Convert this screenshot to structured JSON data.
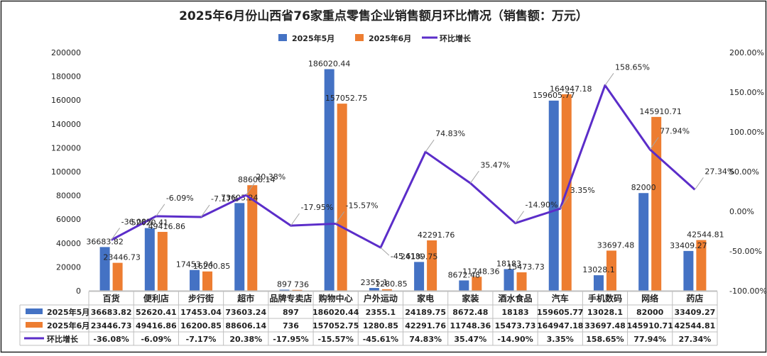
{
  "chart_data": {
    "type": "bar",
    "title": "2025年6月份山西省76家重点零售企业销售额月环比情况（销售额：万元）",
    "categories": [
      "百货",
      "便利店",
      "步行街",
      "超市",
      "品牌专卖店",
      "购物中心",
      "户外运动",
      "家电",
      "家装",
      "酒水食品",
      "汽车",
      "手机数码",
      "网络",
      "药店"
    ],
    "series": [
      {
        "name": "2025年5月",
        "type": "bar",
        "axis": "left",
        "color": "#4472C4",
        "values": [
          36683.82,
          52620.41,
          17453.04,
          73603.24,
          897,
          186020.44,
          2355.1,
          24189.75,
          8672.48,
          18183,
          159605.77,
          13028.1,
          82000,
          33409.27
        ],
        "display": [
          "36683.82",
          "52620.41",
          "17453.04",
          "73603.24",
          "897",
          "186020.44",
          "2355.1",
          "24189.75",
          "8672.48",
          "18183",
          "159605.77",
          "13028.1",
          "82000",
          "33409.27"
        ]
      },
      {
        "name": "2025年6月",
        "type": "bar",
        "axis": "left",
        "color": "#ED7D31",
        "values": [
          23446.73,
          49416.86,
          16200.85,
          88606.14,
          736,
          157052.75,
          1280.85,
          42291.76,
          11748.36,
          15473.73,
          164947.18,
          33697.48,
          145910.71,
          42544.81
        ],
        "display": [
          "23446.73",
          "49416.86",
          "16200.85",
          "88606.14",
          "736",
          "157052.75",
          "1280.85",
          "42291.76",
          "11748.36",
          "15473.73",
          "164947.18",
          "33697.48",
          "145910.71",
          "42544.81"
        ]
      },
      {
        "name": "环比增长",
        "type": "line",
        "axis": "right",
        "color": "#5B2DC9",
        "values": [
          -36.08,
          -6.09,
          -7.17,
          20.38,
          -17.95,
          -15.57,
          -45.61,
          74.83,
          35.47,
          -14.9,
          3.35,
          158.65,
          77.94,
          27.34
        ],
        "display": [
          "-36.08%",
          "-6.09%",
          "-7.17%",
          "20.38%",
          "-17.95%",
          "-15.57%",
          "-45.61%",
          "74.83%",
          "35.47%",
          "-14.90%",
          "3.35%",
          "158.65%",
          "77.94%",
          "27.34%"
        ]
      }
    ],
    "y_left": {
      "min": 0,
      "max": 200000,
      "step": 20000,
      "ticks": [
        "0",
        "20000",
        "40000",
        "60000",
        "80000",
        "100000",
        "120000",
        "140000",
        "160000",
        "180000",
        "200000"
      ]
    },
    "y_right": {
      "min": -100,
      "max": 200,
      "step": 50,
      "ticks": [
        "-100.00%",
        "-50.00%",
        "0.00%",
        "50.00%",
        "100.00%",
        "150.00%",
        "200.00%"
      ]
    },
    "legend_position": "top-center",
    "grid": false,
    "data_table": true
  }
}
